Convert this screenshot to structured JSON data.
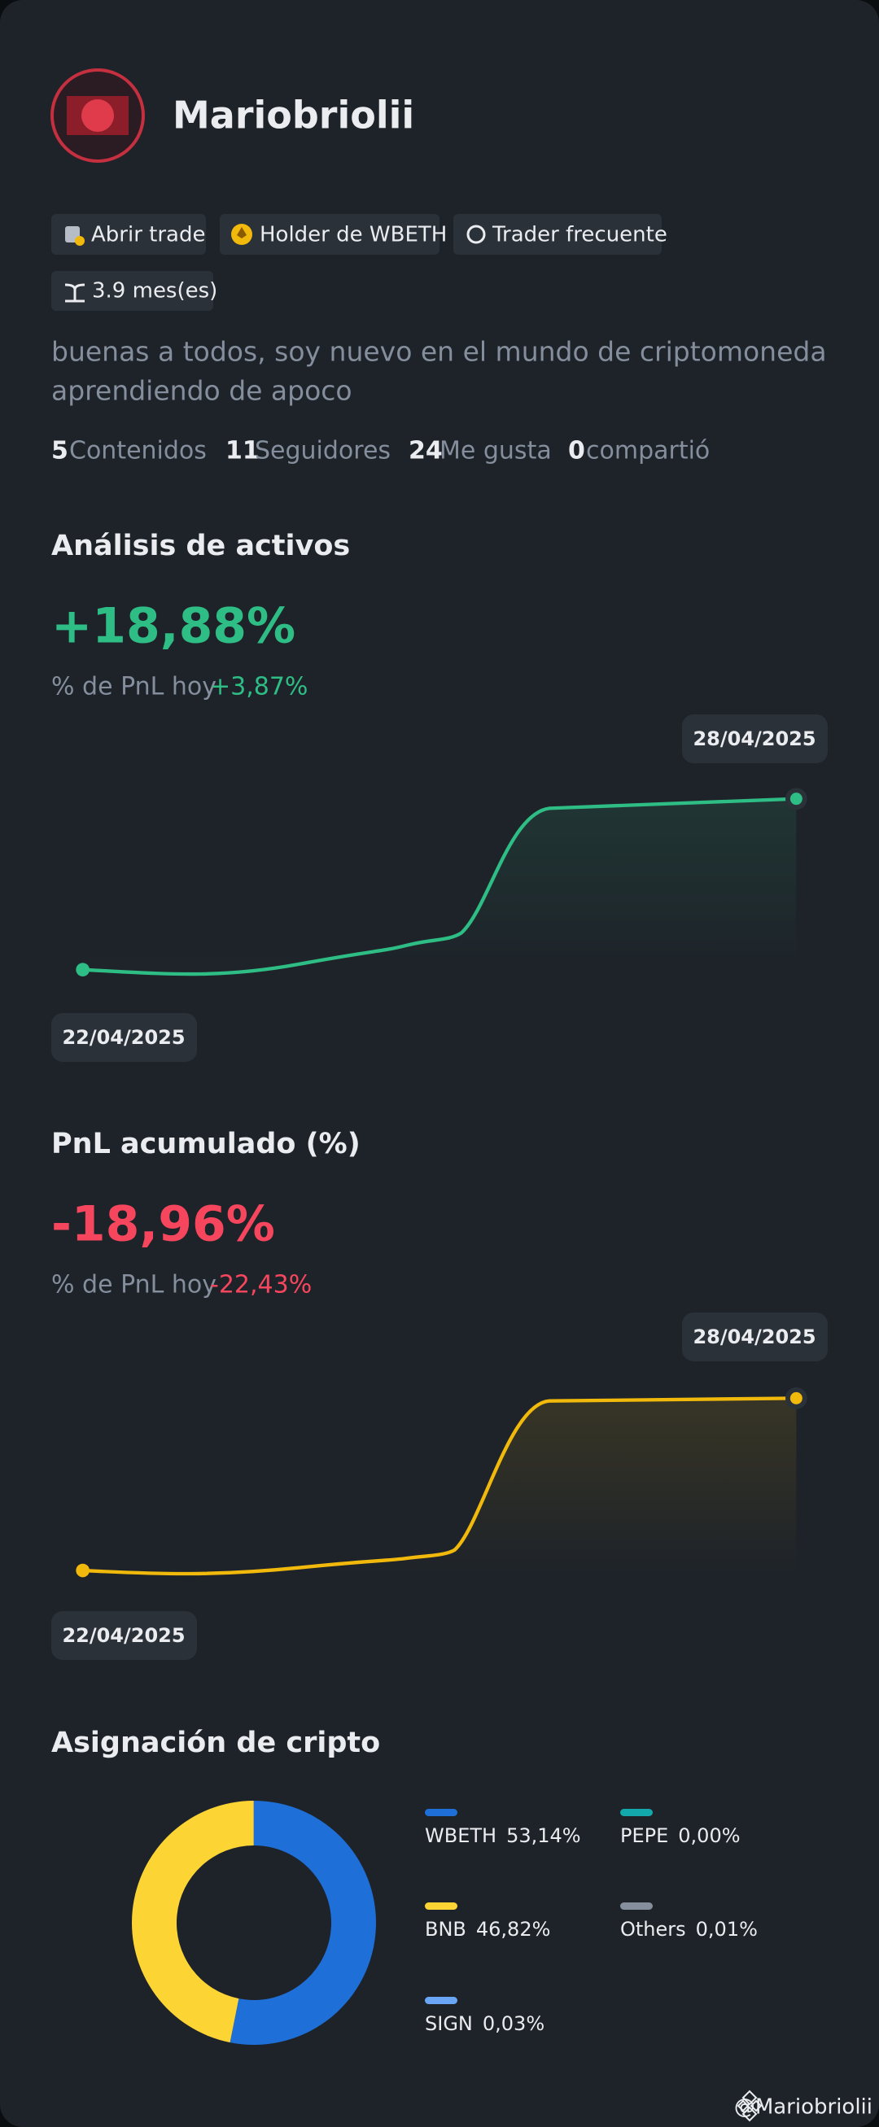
{
  "profile": {
    "name": "Mariobriolii",
    "badges": [
      "Abrir trade",
      "Holder de WBETH",
      "Trader frecuente",
      "3.9 mes(es)"
    ],
    "bio": [
      "buenas a todos,  soy nuevo en el mundo de criptomoneda",
      "aprendiendo de apoco"
    ],
    "stats": [
      {
        "count": 5,
        "label": "Contenidos"
      },
      {
        "count": 11,
        "label": "Seguidores"
      },
      {
        "count": 24,
        "label": "Me gusta"
      },
      {
        "count": 0,
        "label": "compartió"
      }
    ]
  },
  "pnl_sections": [
    {
      "title": "Análisis de activos",
      "value": "+18,88%",
      "today_label": "% de PnL hoy",
      "today_value": "+3,87%",
      "start_date": "22/04/2025",
      "end_date": "28/04/2025"
    },
    {
      "title": "PnL acumulado (%)",
      "value": "-18,96%",
      "today_label": "% de PnL hoy",
      "today_value": "-22,43%",
      "start_date": "22/04/2025",
      "end_date": "28/04/2025"
    }
  ],
  "chart_data": {
    "type": "pie",
    "title": "Asignación de cripto",
    "categories": [
      "WBETH",
      "PEPE",
      "BNB",
      "Others",
      "SIGN"
    ],
    "values": [
      53.14,
      0,
      46.82,
      0.01,
      0.03
    ],
    "value_labels": [
      "53,14%",
      "0,00%",
      "46,82%",
      "0,01%",
      "0,03%"
    ],
    "colors": [
      "#1f6fd8",
      "#13a8ab",
      "#fcd535",
      "#848e9c",
      "#6aa6f5"
    ]
  },
  "footer": "@Mariobriolii"
}
